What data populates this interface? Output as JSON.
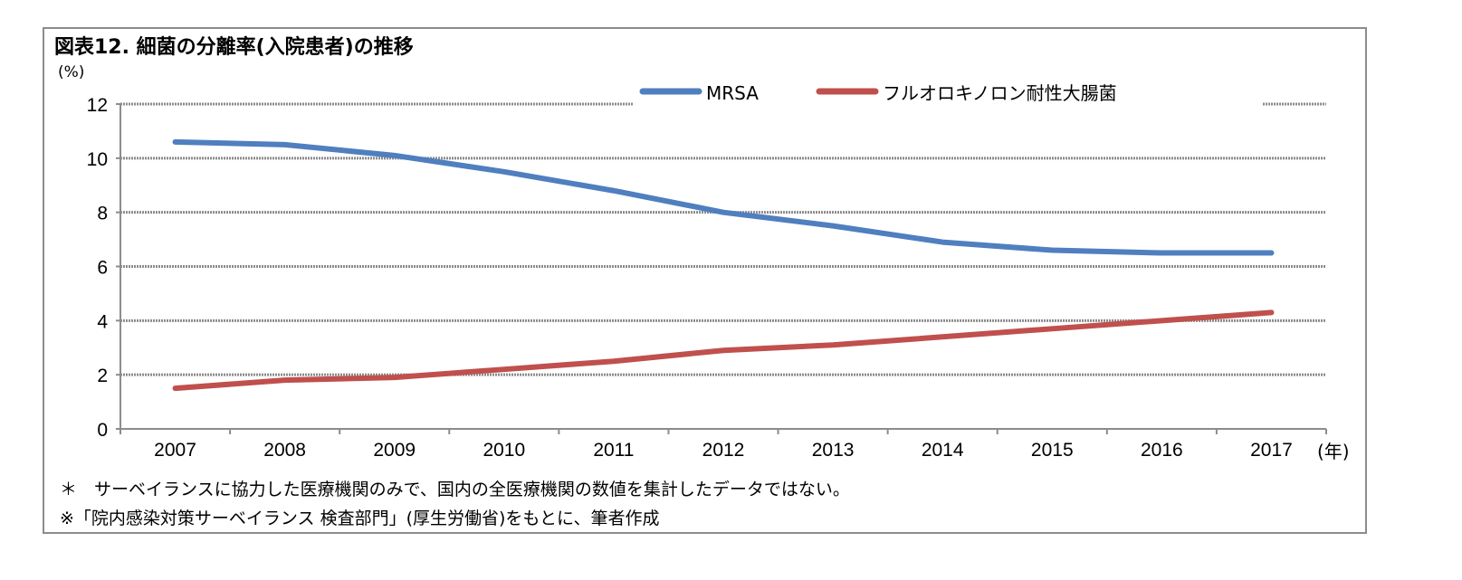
{
  "title": "図表12. 細菌の分離率(入院患者)の推移",
  "notes": [
    "＊　サーベイランスに協力した医療機関のみで、国内の全医療機関の数値を集計したデータではない。",
    "※「院内感染対策サーベイランス 検査部門」(厚生労働省)をもとに、筆者作成"
  ],
  "chart_data": {
    "type": "line",
    "title": "図表12. 細菌の分離率(入院患者)の推移",
    "ylabel": "(%)",
    "xlabel": "(年)",
    "categories": [
      "2007",
      "2008",
      "2009",
      "2010",
      "2011",
      "2012",
      "2013",
      "2014",
      "2015",
      "2016",
      "2017"
    ],
    "ylim": [
      0,
      12
    ],
    "yticks": [
      0,
      2,
      4,
      6,
      8,
      10,
      12
    ],
    "grid": "horizontal dotted",
    "legend": "top",
    "series": [
      {
        "name": "MRSA",
        "color": "#4f7fbf",
        "values": [
          10.6,
          10.5,
          10.1,
          9.5,
          8.8,
          8.0,
          7.5,
          6.9,
          6.6,
          6.5,
          6.5
        ]
      },
      {
        "name": "フルオロキノロン耐性大腸菌",
        "color": "#c0504d",
        "values": [
          1.5,
          1.8,
          1.9,
          2.2,
          2.5,
          2.9,
          3.1,
          3.4,
          3.7,
          4.0,
          4.3
        ]
      }
    ]
  }
}
